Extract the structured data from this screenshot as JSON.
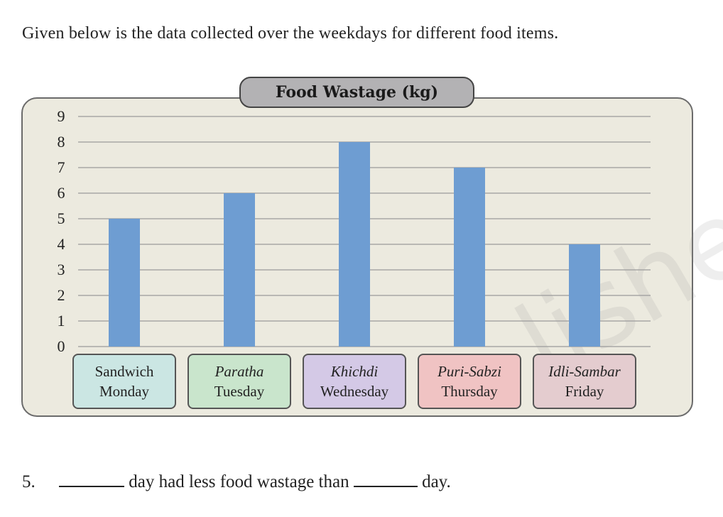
{
  "intro_text": "Given below is the data collected over the weekdays for different food items.",
  "question": {
    "number": "5.",
    "part1": "day had less food wastage than",
    "part2": "day."
  },
  "colors": {
    "bar": "#6e9dd2",
    "panel": "#eceadf",
    "grid": "#9a9a9a",
    "title_pill": "#b3b2b4",
    "category_boxes": [
      "#cbe6e3",
      "#c9e5cc",
      "#d4c9e6",
      "#f0c3c3",
      "#e4cccf"
    ]
  },
  "chart_data": {
    "type": "bar",
    "title": "Food Wastage (kg)",
    "xlabel": "",
    "ylabel": "",
    "ylim": [
      0,
      9
    ],
    "yticks": [
      "0",
      "1",
      "2",
      "3",
      "4",
      "5",
      "6",
      "7",
      "8",
      "9"
    ],
    "grid": true,
    "categories": [
      {
        "food": "Sandwich",
        "day": "Monday",
        "food_italic": false
      },
      {
        "food": "Paratha",
        "day": "Tuesday",
        "food_italic": true
      },
      {
        "food": "Khichdi",
        "day": "Wednesday",
        "food_italic": true
      },
      {
        "food": "Puri-Sabzi",
        "day": "Thursday",
        "food_italic": true
      },
      {
        "food": "Idli-Sambar",
        "day": "Friday",
        "food_italic": true
      }
    ],
    "values": [
      5,
      6,
      8,
      7,
      4
    ]
  }
}
